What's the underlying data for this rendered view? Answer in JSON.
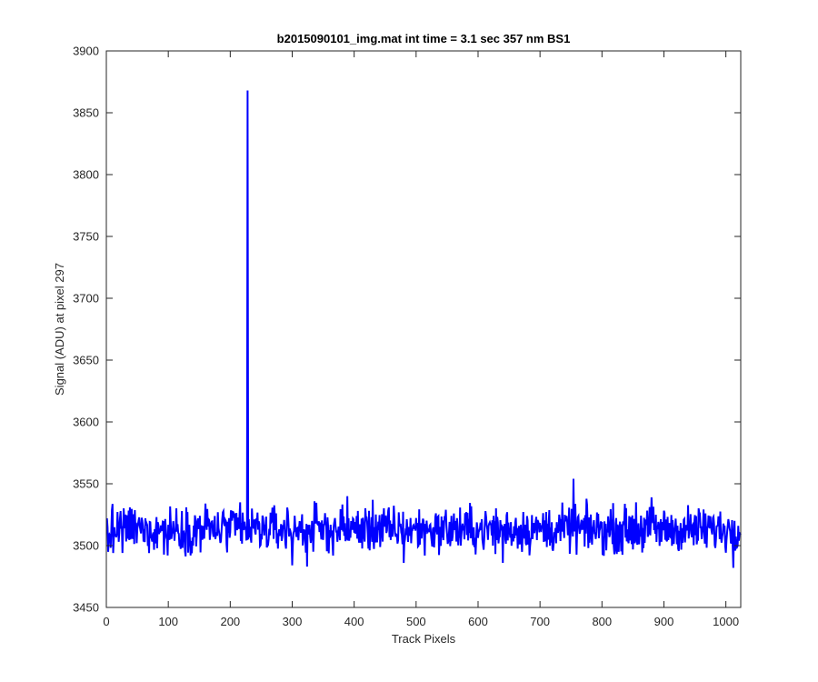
{
  "chart_data": {
    "type": "line",
    "title": "b2015090101_img.mat int time = 3.1 sec  357 nm BS1",
    "xlabel": "Track Pixels",
    "ylabel": "Signal (ADU) at pixel 297",
    "xlim": [
      0,
      1024
    ],
    "ylim": [
      3450,
      3900
    ],
    "xticks": [
      0,
      100,
      200,
      300,
      400,
      500,
      600,
      700,
      800,
      900,
      1000
    ],
    "yticks": [
      3450,
      3500,
      3550,
      3600,
      3650,
      3700,
      3750,
      3800,
      3850,
      3900
    ],
    "grid": false,
    "legend": "none",
    "line_color": "#0000ff",
    "series": [
      {
        "baseline": 3513,
        "noise_amplitude": 9,
        "n_points": 1024,
        "x_start": 1,
        "x_step": 1,
        "notable_points": [
          {
            "x": 3,
            "y": 3495
          },
          {
            "x": 11,
            "y": 3494
          },
          {
            "x": 26,
            "y": 3494
          },
          {
            "x": 38,
            "y": 3531
          },
          {
            "x": 99,
            "y": 3492
          },
          {
            "x": 160,
            "y": 3534
          },
          {
            "x": 216,
            "y": 3535
          },
          {
            "x": 227,
            "y": 3505
          },
          {
            "x": 228,
            "y": 3868
          },
          {
            "x": 229,
            "y": 3505
          },
          {
            "x": 300,
            "y": 3484
          },
          {
            "x": 324,
            "y": 3483
          },
          {
            "x": 389,
            "y": 3540
          },
          {
            "x": 430,
            "y": 3537
          },
          {
            "x": 480,
            "y": 3486
          },
          {
            "x": 640,
            "y": 3486
          },
          {
            "x": 754,
            "y": 3554
          },
          {
            "x": 855,
            "y": 3535
          },
          {
            "x": 880,
            "y": 3539
          },
          {
            "x": 1012,
            "y": 3482
          },
          {
            "x": 1014,
            "y": 3520
          }
        ]
      }
    ]
  }
}
